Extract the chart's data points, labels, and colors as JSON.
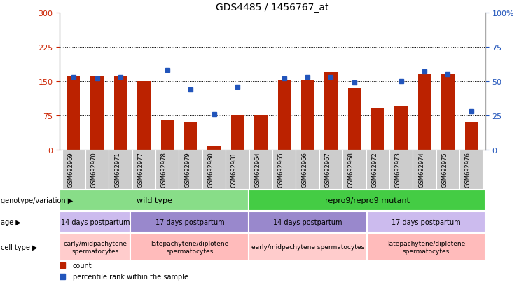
{
  "title": "GDS4485 / 1456767_at",
  "samples": [
    "GSM692969",
    "GSM692970",
    "GSM692971",
    "GSM692977",
    "GSM692978",
    "GSM692979",
    "GSM692980",
    "GSM692981",
    "GSM692964",
    "GSM692965",
    "GSM692966",
    "GSM692967",
    "GSM692968",
    "GSM692972",
    "GSM692973",
    "GSM692974",
    "GSM692975",
    "GSM692976"
  ],
  "counts": [
    160,
    160,
    160,
    150,
    65,
    60,
    10,
    75,
    75,
    152,
    152,
    170,
    135,
    90,
    95,
    165,
    165,
    60
  ],
  "percentile_ranks": [
    53,
    52,
    53,
    null,
    58,
    44,
    26,
    46,
    null,
    52,
    53,
    53,
    49,
    null,
    50,
    57,
    55,
    28
  ],
  "ylim_left": [
    0,
    300
  ],
  "ylim_right": [
    0,
    100
  ],
  "yticks_left": [
    0,
    75,
    150,
    225,
    300
  ],
  "yticks_right": [
    0,
    25,
    50,
    75,
    100
  ],
  "bar_color": "#bb2200",
  "dot_color": "#2255bb",
  "genotype_row_label": "genotype/variation",
  "genotype_groups": [
    {
      "text": "wild type",
      "start": 0,
      "end": 8,
      "color": "#88dd88"
    },
    {
      "text": "repro9/repro9 mutant",
      "start": 8,
      "end": 18,
      "color": "#44cc44"
    }
  ],
  "age_row_label": "age",
  "age_groups": [
    {
      "text": "14 days postpartum",
      "start": 0,
      "end": 3,
      "color": "#ccbbee"
    },
    {
      "text": "17 days postpartum",
      "start": 3,
      "end": 8,
      "color": "#9988cc"
    },
    {
      "text": "14 days postpartum",
      "start": 8,
      "end": 13,
      "color": "#9988cc"
    },
    {
      "text": "17 days postpartum",
      "start": 13,
      "end": 18,
      "color": "#ccbbee"
    }
  ],
  "celltype_row_label": "cell type",
  "celltype_groups": [
    {
      "text": "early/midpachytene\nspermatocytes",
      "start": 0,
      "end": 3,
      "color": "#ffcccc"
    },
    {
      "text": "latepachytene/diplotene\nspermatocytes",
      "start": 3,
      "end": 8,
      "color": "#ffbbbb"
    },
    {
      "text": "early/midpachytene spermatocytes",
      "start": 8,
      "end": 13,
      "color": "#ffcccc"
    },
    {
      "text": "latepachytene/diplotene\nspermatocytes",
      "start": 13,
      "end": 18,
      "color": "#ffbbbb"
    }
  ],
  "legend_items": [
    {
      "color": "#bb2200",
      "label": "count"
    },
    {
      "color": "#2255bb",
      "label": "percentile rank within the sample"
    }
  ]
}
